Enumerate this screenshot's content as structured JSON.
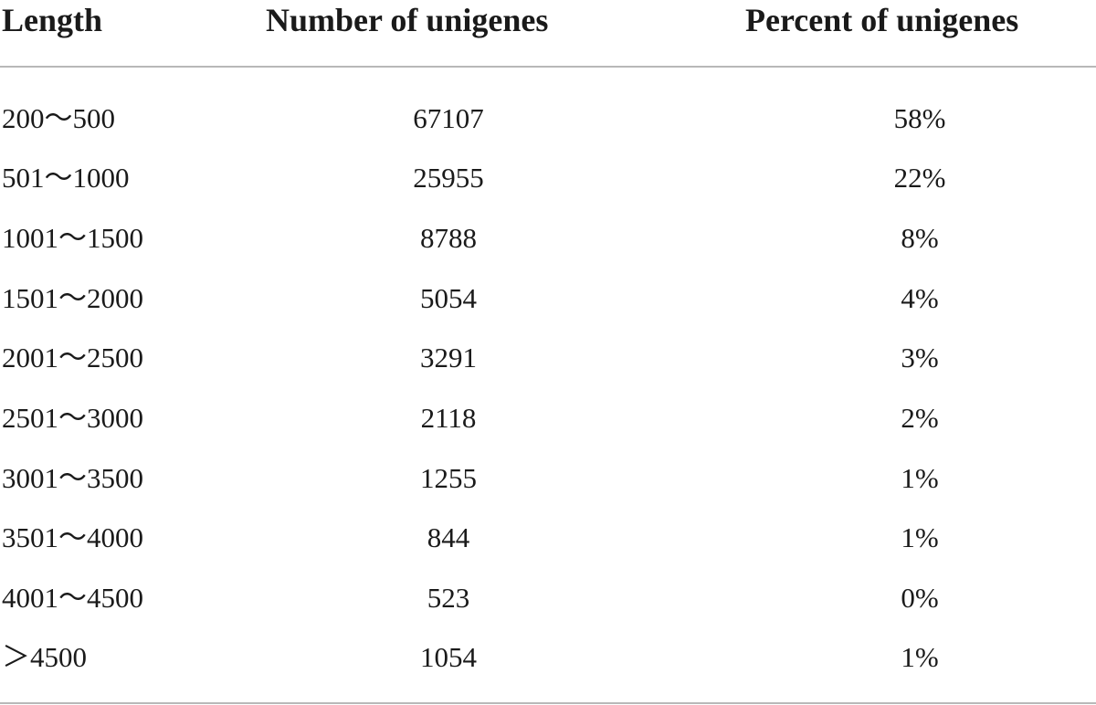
{
  "table": {
    "headers": [
      "Length",
      "Number of unigenes",
      "Percent of unigenes"
    ],
    "rows": [
      [
        "200～500",
        "67107",
        "58%"
      ],
      [
        "501～1000",
        "25955",
        "22%"
      ],
      [
        "1001～1500",
        "8788",
        "8%"
      ],
      [
        "1501～2000",
        "5054",
        "4%"
      ],
      [
        "2001～2500",
        "3291",
        "3%"
      ],
      [
        "2501～3000",
        "2118",
        "2%"
      ],
      [
        "3001～3500",
        "1255",
        "1%"
      ],
      [
        "3501～4000",
        "844",
        "1%"
      ],
      [
        "4001～4500",
        "523",
        "0%"
      ],
      [
        "＞4500",
        "1054",
        "1%"
      ]
    ]
  }
}
